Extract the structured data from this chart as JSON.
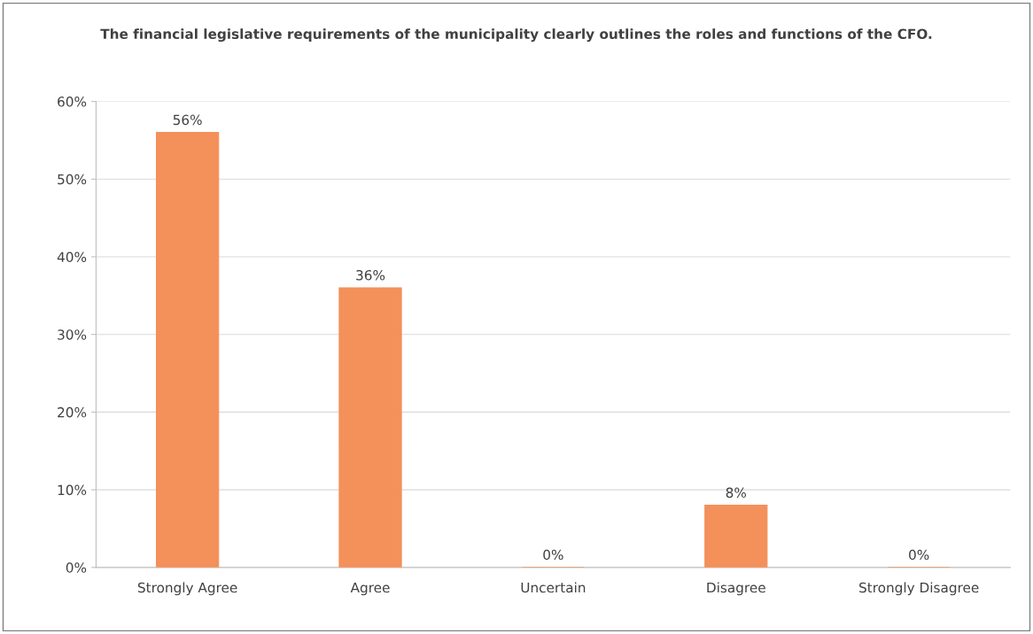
{
  "chart_data": {
    "type": "bar",
    "title": "The financial legislative requirements of the municipality clearly outlines the roles and functions of the CFO.",
    "categories": [
      "Strongly Agree",
      "Agree",
      "Uncertain",
      "Disagree",
      "Strongly Disagree"
    ],
    "values": [
      56,
      36,
      0,
      8,
      0
    ],
    "value_labels": [
      "56%",
      "36%",
      "0%",
      "8%",
      "0%"
    ],
    "color": "#f4905a",
    "ylim": [
      0,
      60
    ],
    "yticks": [
      {
        "value": 0,
        "label": "0%"
      },
      {
        "value": 10,
        "label": "10%"
      },
      {
        "value": 20,
        "label": "20%"
      },
      {
        "value": 30,
        "label": "30%"
      },
      {
        "value": 40,
        "label": "40%"
      },
      {
        "value": 50,
        "label": "50%"
      },
      {
        "value": 60,
        "label": "60%"
      }
    ],
    "grid": "y",
    "legend": false
  }
}
